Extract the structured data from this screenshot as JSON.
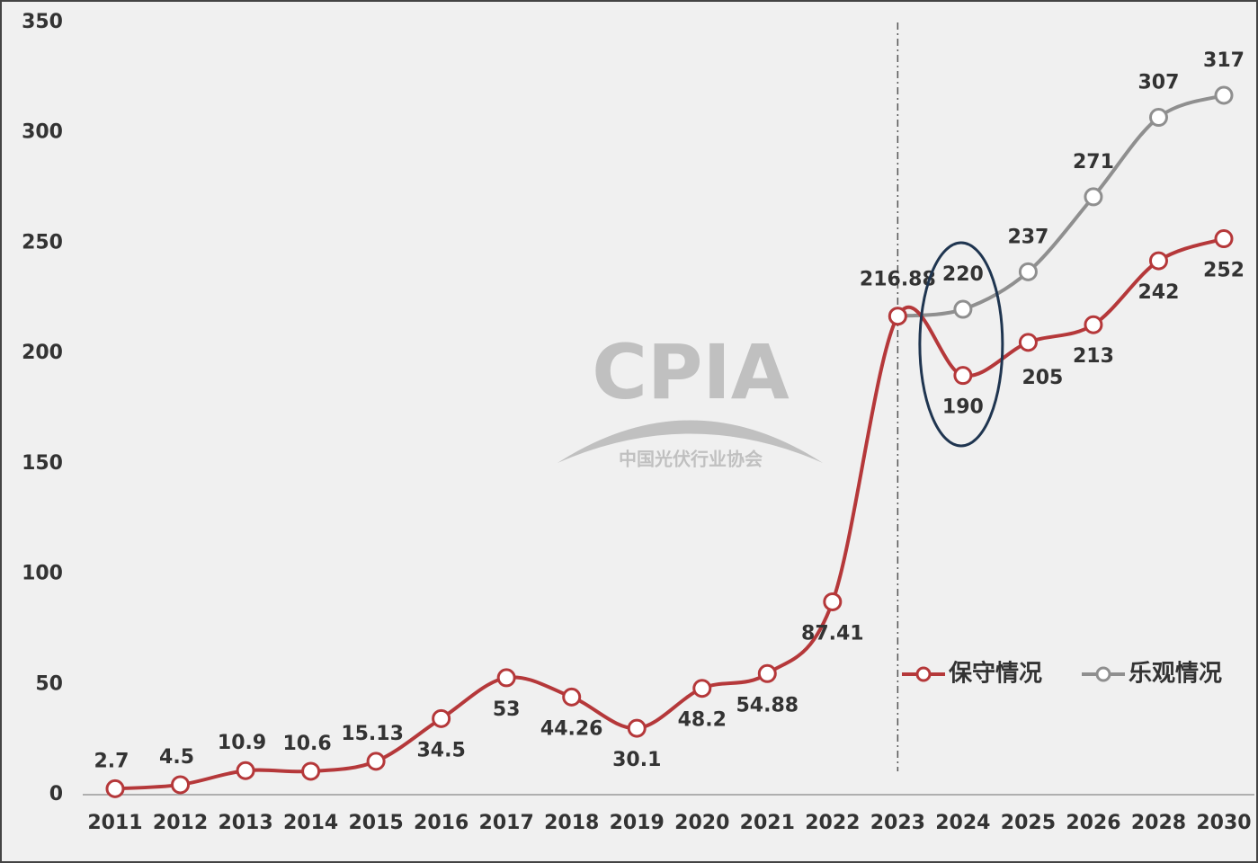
{
  "chart_data": {
    "type": "line",
    "categories": [
      "2011",
      "2012",
      "2013",
      "2014",
      "2015",
      "2016",
      "2017",
      "2018",
      "2019",
      "2020",
      "2021",
      "2022",
      "2023",
      "2024",
      "2025",
      "2026",
      "2028",
      "2030"
    ],
    "series": [
      {
        "name": "保守情况",
        "color": "#b5383a",
        "values": [
          2.7,
          4.5,
          10.9,
          10.6,
          15.13,
          34.5,
          53,
          44.26,
          30.1,
          48.2,
          54.88,
          87.41,
          216.88,
          190,
          205,
          213,
          242,
          252
        ]
      },
      {
        "name": "乐观情况",
        "color": "#8f8f8f",
        "values": [
          null,
          null,
          null,
          null,
          null,
          null,
          null,
          null,
          null,
          null,
          null,
          null,
          216.88,
          220,
          237,
          271,
          307,
          317
        ]
      }
    ],
    "ylim": [
      0,
      350
    ],
    "yticks": [
      0,
      50,
      100,
      150,
      200,
      250,
      300,
      350
    ],
    "grid": false,
    "legend": "lower right",
    "watermark": {
      "title": "CPIA",
      "subtitle": "中国光伏行业协会"
    }
  }
}
